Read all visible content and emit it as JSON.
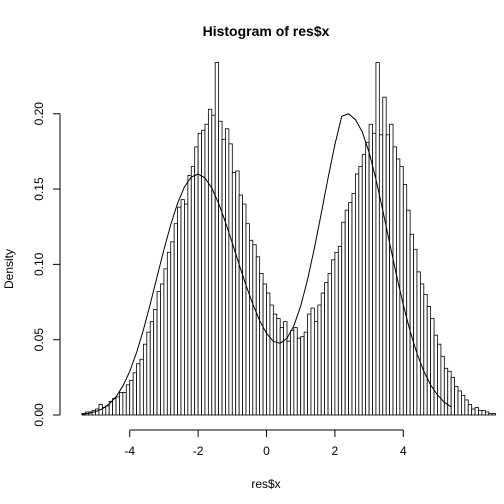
{
  "chart_data": {
    "type": "bar",
    "title": "Histogram of res$x",
    "xlabel": "res$x",
    "ylabel": "Density",
    "xlim": [
      -5.6,
      5.6
    ],
    "ylim": [
      0,
      0.235
    ],
    "x_ticks": [
      -4,
      -2,
      0,
      2,
      4
    ],
    "x_tick_labels": [
      "-4",
      "-2",
      "0",
      "2",
      "4"
    ],
    "y_ticks": [
      0.0,
      0.05,
      0.1,
      0.15,
      0.2
    ],
    "y_tick_labels": [
      "0.00",
      "0.05",
      "0.10",
      "0.15",
      "0.20"
    ],
    "grid": false,
    "bin_start": -5.4,
    "bin_width": 0.1,
    "bar_density": [
      0.001,
      0.002,
      0.002,
      0.003,
      0.004,
      0.007,
      0.005,
      0.006,
      0.009,
      0.011,
      0.012,
      0.015,
      0.015,
      0.02,
      0.023,
      0.028,
      0.034,
      0.037,
      0.047,
      0.055,
      0.062,
      0.07,
      0.082,
      0.087,
      0.097,
      0.108,
      0.115,
      0.127,
      0.138,
      0.143,
      0.14,
      0.159,
      0.165,
      0.178,
      0.187,
      0.189,
      0.193,
      0.203,
      0.199,
      0.234,
      0.195,
      0.183,
      0.19,
      0.18,
      0.161,
      0.162,
      0.146,
      0.14,
      0.127,
      0.116,
      0.113,
      0.105,
      0.094,
      0.087,
      0.081,
      0.073,
      0.067,
      0.064,
      0.058,
      0.062,
      0.049,
      0.056,
      0.058,
      0.051,
      0.052,
      0.055,
      0.067,
      0.071,
      0.062,
      0.073,
      0.081,
      0.088,
      0.094,
      0.103,
      0.108,
      0.112,
      0.128,
      0.136,
      0.141,
      0.147,
      0.16,
      0.165,
      0.173,
      0.181,
      0.193,
      0.187,
      0.234,
      0.186,
      0.211,
      0.186,
      0.193,
      0.178,
      0.17,
      0.165,
      0.153,
      0.136,
      0.12,
      0.11,
      0.095,
      0.087,
      0.08,
      0.072,
      0.064,
      0.053,
      0.047,
      0.039,
      0.031,
      0.029,
      0.025,
      0.019,
      0.016,
      0.013,
      0.01,
      0.007,
      0.004,
      0.005,
      0.003,
      0.003,
      0.002,
      0.001,
      0.001
    ],
    "density_curve": {
      "type": "line",
      "x": [
        -5.4,
        -5.2,
        -5.0,
        -4.8,
        -4.6,
        -4.4,
        -4.2,
        -4.0,
        -3.8,
        -3.6,
        -3.4,
        -3.2,
        -3.0,
        -2.8,
        -2.6,
        -2.4,
        -2.2,
        -2.0,
        -1.8,
        -1.6,
        -1.4,
        -1.2,
        -1.0,
        -0.8,
        -0.6,
        -0.4,
        -0.2,
        0.0,
        0.2,
        0.4,
        0.6,
        0.8,
        1.0,
        1.2,
        1.4,
        1.6,
        1.8,
        2.0,
        2.2,
        2.4,
        2.6,
        2.8,
        3.0,
        3.2,
        3.4,
        3.6,
        3.8,
        4.0,
        4.2,
        4.4,
        4.6,
        4.8,
        5.0,
        5.2,
        5.4
      ],
      "y": [
        0.0005,
        0.0011,
        0.0022,
        0.0041,
        0.0073,
        0.0121,
        0.0192,
        0.0289,
        0.0414,
        0.0565,
        0.0736,
        0.0918,
        0.1098,
        0.1264,
        0.1406,
        0.1514,
        0.158,
        0.16,
        0.1574,
        0.1507,
        0.1405,
        0.128,
        0.1142,
        0.0999,
        0.0862,
        0.0736,
        0.0627,
        0.0542,
        0.0489,
        0.0476,
        0.0509,
        0.0592,
        0.0724,
        0.0898,
        0.1107,
        0.1337,
        0.1573,
        0.1795,
        0.1983,
        0.2,
        0.1961,
        0.188,
        0.1744,
        0.1565,
        0.1359,
        0.1142,
        0.0929,
        0.0731,
        0.0556,
        0.0409,
        0.0291,
        0.02,
        0.0133,
        0.0085,
        0.0053
      ]
    }
  }
}
